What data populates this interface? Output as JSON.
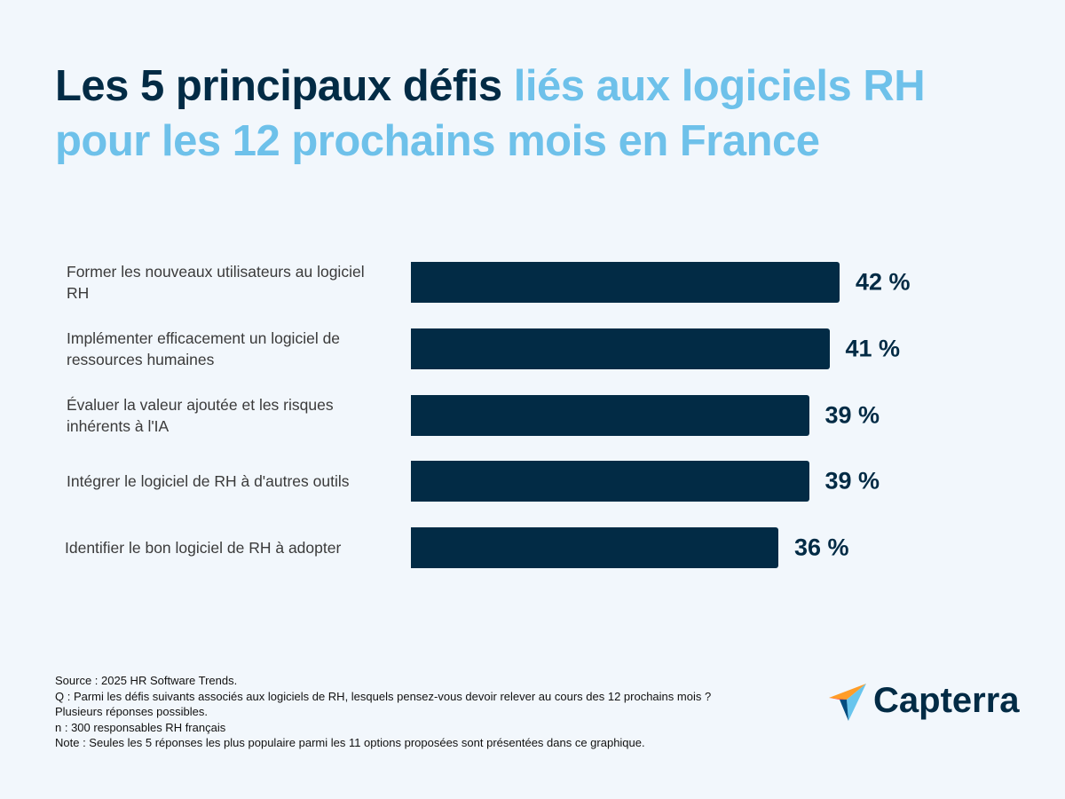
{
  "chart_data": {
    "type": "bar",
    "orientation": "horizontal",
    "title": [
      "Les 5 principaux défis",
      "liés aux logiciels RH pour les 12 prochains mois en France"
    ],
    "title_colors": [
      "#022b45",
      "#6ec1ea"
    ],
    "categories": [
      "Former les nouveaux utilisateurs au logiciel RH",
      "Implémenter  efficacement un logiciel de ressources humaines",
      "Évaluer la valeur ajoutée et les risques inhérents à l'IA",
      "Intégrer le logiciel de RH à d'autres outils",
      "Identifier le bon logiciel de RH à adopter"
    ],
    "values": [
      42,
      41,
      39,
      39,
      36
    ],
    "value_labels": [
      "42 %",
      "41 %",
      "39 %",
      "39 %",
      "36 %"
    ],
    "color": "#022b45",
    "notes": [
      "Source : 2025 HR Software Trends.",
      "Q : Parmi les défis suivants associés aux logiciels de RH, lesquels pensez-vous devoir relever au cours des 12 prochains mois ?",
      "Plusieurs réponses possibles.",
      "n : 300 responsables RH français",
      "Note : Seules les 5 réponses les plus populaire parmi les 11 options proposées sont présentées dans ce graphique."
    ],
    "logo": "Capterra"
  }
}
